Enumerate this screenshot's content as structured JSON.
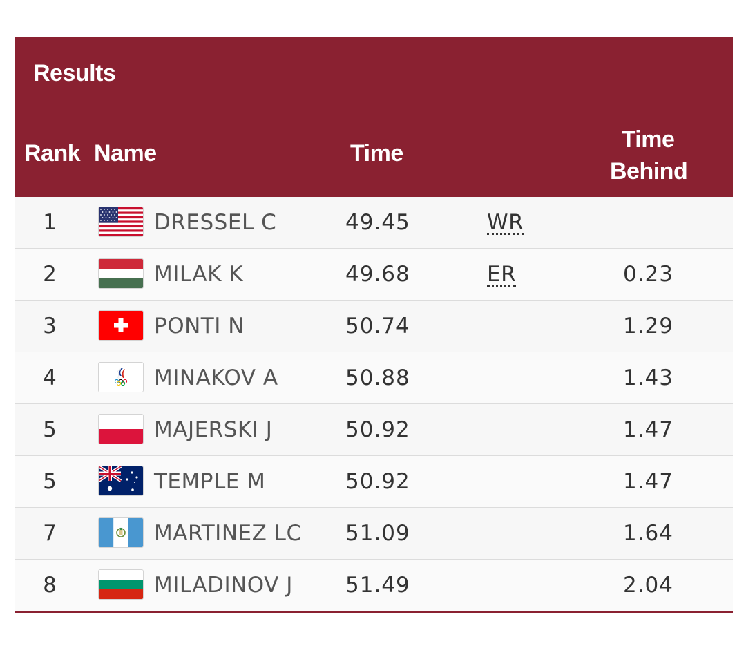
{
  "results": {
    "title": "Results",
    "columns": {
      "rank": "Rank",
      "name": "Name",
      "time": "Time",
      "behind_line1": "Time",
      "behind_line2": "Behind"
    },
    "rows": [
      {
        "rank": "1",
        "flag": "usa-flag-icon",
        "name": "DRESSEL C",
        "time": "49.45",
        "record": "WR",
        "behind": ""
      },
      {
        "rank": "2",
        "flag": "hungary-flag-icon",
        "name": "MILAK K",
        "time": "49.68",
        "record": "ER",
        "behind": "0.23"
      },
      {
        "rank": "3",
        "flag": "switzerland-flag-icon",
        "name": "PONTI N",
        "time": "50.74",
        "record": "",
        "behind": "1.29"
      },
      {
        "rank": "4",
        "flag": "roc-emblem-icon",
        "name": "MINAKOV A",
        "time": "50.88",
        "record": "",
        "behind": "1.43"
      },
      {
        "rank": "5",
        "flag": "poland-flag-icon",
        "name": "MAJERSKI J",
        "time": "50.92",
        "record": "",
        "behind": "1.47"
      },
      {
        "rank": "5",
        "flag": "australia-flag-icon",
        "name": "TEMPLE M",
        "time": "50.92",
        "record": "",
        "behind": "1.47"
      },
      {
        "rank": "7",
        "flag": "guatemala-flag-icon",
        "name": "MARTINEZ LC",
        "time": "51.09",
        "record": "",
        "behind": "1.64"
      },
      {
        "rank": "8",
        "flag": "bulgaria-flag-icon",
        "name": "MILADINOV J",
        "time": "51.49",
        "record": "",
        "behind": "2.04"
      }
    ]
  },
  "colors": {
    "header_bg": "#8a2131",
    "header_text": "#ffffff",
    "row_text": "#333333"
  }
}
